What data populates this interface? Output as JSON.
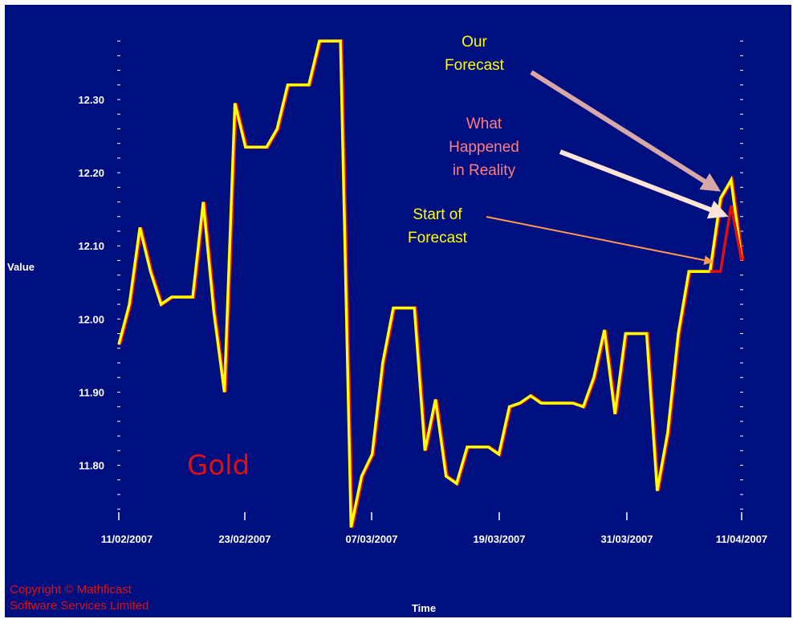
{
  "chart_data": {
    "type": "line",
    "ylabel": "Value",
    "xlabel": "Time",
    "ylim": [
      11.715,
      12.4
    ],
    "y_ticks": [
      "12.30",
      "12.20",
      "12.10",
      "12.00",
      "11.90",
      "11.80"
    ],
    "x_tick_labels": [
      "11/02/2007",
      "23/02/2007",
      "07/03/2007",
      "19/03/2007",
      "31/03/2007",
      "11/04/2007"
    ],
    "x_range": [
      0,
      59
    ],
    "series": [
      {
        "color": "#ffff00",
        "x": [
          0,
          1,
          2,
          3,
          4,
          5,
          6,
          7,
          8,
          9,
          10,
          11,
          12,
          13,
          14,
          15,
          16,
          17,
          18,
          19,
          20,
          21,
          22,
          23,
          24,
          25,
          26,
          27,
          28,
          29,
          30,
          31,
          32,
          33,
          34,
          35,
          36,
          37,
          38,
          39,
          40,
          41,
          42,
          43,
          44,
          45,
          46,
          47,
          48,
          49,
          50,
          51,
          52,
          53,
          54,
          55,
          56,
          57,
          58,
          59
        ],
        "values": [
          11.965,
          12.02,
          12.125,
          12.065,
          12.02,
          12.03,
          12.03,
          12.03,
          12.16,
          12.01,
          11.9,
          12.295,
          12.235,
          12.235,
          12.235,
          12.26,
          12.32,
          12.32,
          12.32,
          12.38,
          12.38,
          12.38,
          11.715,
          11.785,
          11.815,
          11.94,
          12.015,
          12.015,
          12.015,
          11.82,
          11.89,
          11.785,
          11.775,
          11.825,
          11.825,
          11.825,
          11.815,
          11.88,
          11.885,
          11.895,
          11.885,
          11.885,
          11.885,
          11.885,
          11.88,
          11.92,
          11.985,
          11.87,
          11.98,
          11.98,
          11.98,
          11.765,
          11.845,
          11.98,
          12.065,
          12.065,
          12.065,
          12.165,
          12.19,
          12.08
        ]
      },
      {
        "color": "#e01010",
        "x": [
          56,
          57,
          58,
          59
        ],
        "values": [
          12.065,
          12.065,
          12.155,
          12.08
        ]
      }
    ],
    "annotations": [
      {
        "lines": [
          "Our",
          "Forecast"
        ],
        "color": "#ffff00"
      },
      {
        "lines": [
          "What",
          "Happened",
          "in Reality"
        ],
        "color": "#ff7f7f"
      },
      {
        "lines": [
          "Start of",
          "Forecast"
        ],
        "color": "#ffff00"
      }
    ],
    "series_label": "Gold",
    "grid": false
  },
  "copyright_lines": [
    "Copyright © Mathficast",
    "Software Services Limited"
  ],
  "colors": {
    "background": "#000f7f",
    "primary_line": "#ffff00",
    "reality_line": "#e01010"
  }
}
